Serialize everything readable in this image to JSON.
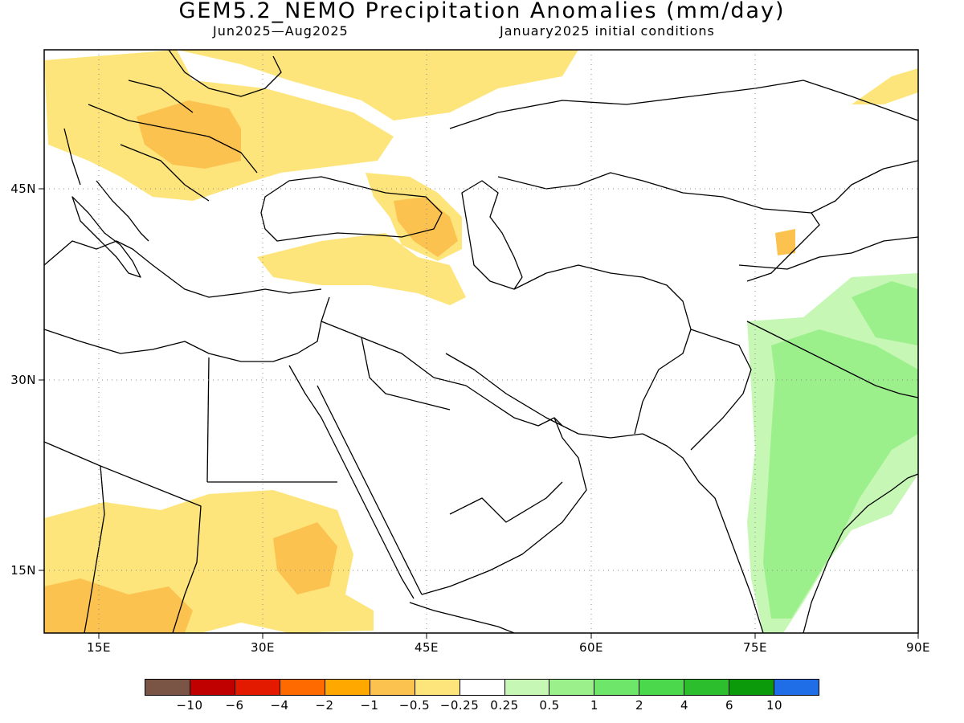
{
  "title": "GEM5.2_NEMO Precipitation Anomalies (mm/day)",
  "subtitle_left": "Jun2025—Aug2025",
  "subtitle_right": "January2025 initial conditions",
  "lat_labels": [
    "45N",
    "30N",
    "15N"
  ],
  "lon_labels": [
    "15E",
    "30E",
    "45E",
    "60E",
    "75E",
    "90E"
  ],
  "colorbar": {
    "colors": [
      "#7a5545",
      "#c00000",
      "#e41a00",
      "#ff6a00",
      "#ffa800",
      "#fcc250",
      "#fde57c",
      "#ffffff",
      "#c6f7b4",
      "#9cf08c",
      "#6ee66a",
      "#4cd84c",
      "#2cbe2c",
      "#0a9a0a",
      "#1f6ee8"
    ],
    "labels": [
      "−10",
      "−6",
      "−4",
      "−2",
      "−1",
      "−0.5",
      "−0.25",
      "0.25",
      "0.5",
      "1",
      "2",
      "4",
      "6",
      "10"
    ]
  }
}
